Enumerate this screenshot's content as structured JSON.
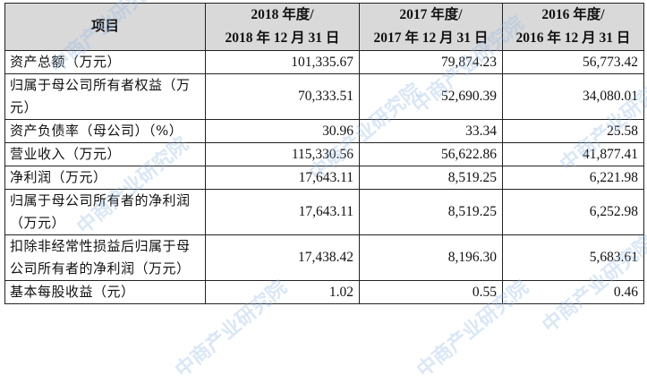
{
  "header": {
    "item_label": "项目",
    "periods": [
      {
        "line1": "2018 年度/",
        "line2": "2018 年 12 月 31 日"
      },
      {
        "line1": "2017 年度/",
        "line2": "2017 年 12 月 31 日"
      },
      {
        "line1": "2016 年度/",
        "line2": "2016 年 12 月 31 日"
      }
    ]
  },
  "rows": [
    {
      "label": "资产总额（万元）",
      "values": [
        "101,335.67",
        "79,874.23",
        "56,773.42"
      ]
    },
    {
      "label": "归属于母公司所有者权益（万元）",
      "values": [
        "70,333.51",
        "52,690.39",
        "34,080.01"
      ]
    },
    {
      "label": "资产负债率（母公司）（%）",
      "values": [
        "30.96",
        "33.34",
        "25.58"
      ]
    },
    {
      "label": "营业收入（万元）",
      "values": [
        "115,330.56",
        "56,622.86",
        "41,877.41"
      ]
    },
    {
      "label": "净利润（万元）",
      "values": [
        "17,643.11",
        "8,519.25",
        "6,221.98"
      ]
    },
    {
      "label": "归属于母公司所有者的净利润（万元）",
      "values": [
        "17,643.11",
        "8,519.25",
        "6,252.98"
      ]
    },
    {
      "label": "扣除非经常性损益后归属于母公司所有者的净利润（万元）",
      "values": [
        "17,438.42",
        "8,196.30",
        "5,683.61"
      ]
    },
    {
      "label": "基本每股收益（元）",
      "values": [
        "1.02",
        "0.55",
        "0.46"
      ]
    }
  ],
  "watermark": {
    "text": "中商产业研究院"
  }
}
